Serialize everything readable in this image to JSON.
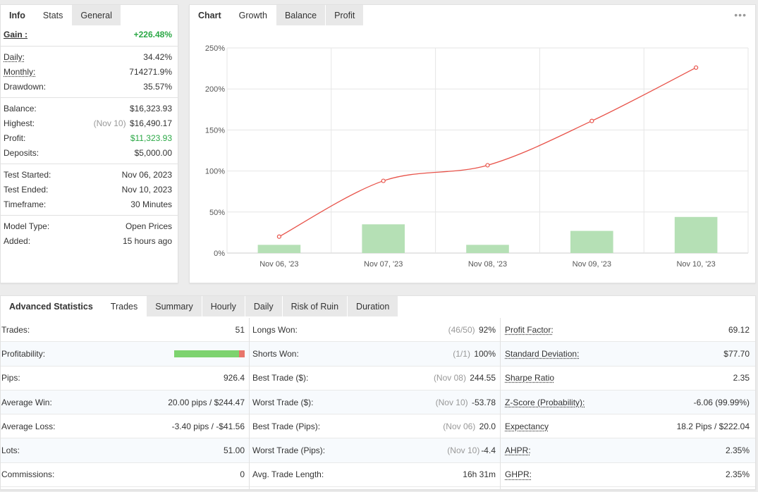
{
  "info_panel": {
    "tabs": [
      "Info",
      "Stats",
      "General"
    ],
    "gain": {
      "label": "Gain :",
      "value": "+226.48%"
    },
    "daily": {
      "label": "Daily:",
      "value": "34.42%"
    },
    "monthly": {
      "label": "Monthly:",
      "value": "714271.9%"
    },
    "drawdown": {
      "label": "Drawdown:",
      "value": "35.57%"
    },
    "balance": {
      "label": "Balance:",
      "value": "$16,323.93"
    },
    "highest": {
      "label": "Highest:",
      "note": "(Nov 10)",
      "value": "$16,490.17"
    },
    "profit": {
      "label": "Profit:",
      "value": "$11,323.93"
    },
    "deposits": {
      "label": "Deposits:",
      "value": "$5,000.00"
    },
    "test_started": {
      "label": "Test Started:",
      "value": "Nov 06, 2023"
    },
    "test_ended": {
      "label": "Test Ended:",
      "value": "Nov 10, 2023"
    },
    "timeframe": {
      "label": "Timeframe:",
      "value": "30 Minutes"
    },
    "model_type": {
      "label": "Model Type:",
      "value": "Open Prices"
    },
    "added": {
      "label": "Added:",
      "value": "15 hours ago"
    }
  },
  "chart_panel": {
    "tabs": [
      "Chart",
      "Growth",
      "Balance",
      "Profit"
    ],
    "menu_icon": "more-icon",
    "menu_glyph": "•••"
  },
  "chart_data": {
    "type": "line",
    "categories": [
      "Nov 06, '23",
      "Nov 07, '23",
      "Nov 08, '23",
      "Nov 09, '23",
      "Nov 10, '23"
    ],
    "y_ticks": [
      "0%",
      "50%",
      "100%",
      "150%",
      "200%",
      "250%"
    ],
    "ylim": [
      0,
      250
    ],
    "grid": true,
    "series": [
      {
        "type": "line",
        "values": [
          20,
          88,
          107,
          161,
          226
        ],
        "color": "#e8534a"
      },
      {
        "type": "bar",
        "values": [
          10,
          35,
          10,
          27,
          44
        ],
        "color": "#b5e0b5"
      }
    ]
  },
  "stats_panel": {
    "tabs": [
      "Advanced Statistics",
      "Trades",
      "Summary",
      "Hourly",
      "Daily",
      "Risk of Ruin",
      "Duration"
    ],
    "col1": [
      {
        "label": "Trades:",
        "value": "51"
      },
      {
        "label": "Profitability:",
        "win_fraction": 0.92
      },
      {
        "label": "Pips:",
        "value": "926.4"
      },
      {
        "label": "Average Win:",
        "value": "20.00 pips / $244.47"
      },
      {
        "label": "Average Loss:",
        "value": "-3.40 pips / -$41.56"
      },
      {
        "label": "Lots:",
        "value": "51.00"
      },
      {
        "label": "Commissions:",
        "value": "0"
      }
    ],
    "col2": [
      {
        "label": "Longs Won:",
        "note": "(46/50)",
        "value": "92%"
      },
      {
        "label": "Shorts Won:",
        "note": "(1/1)",
        "value": "100%"
      },
      {
        "label": "Best Trade ($):",
        "note": "(Nov 08)",
        "value": "244.55"
      },
      {
        "label": "Worst Trade ($):",
        "note": "(Nov 10)",
        "value": "-53.78"
      },
      {
        "label": "Best Trade (Pips):",
        "note": "(Nov 06)",
        "value": "20.0"
      },
      {
        "label": "Worst Trade (Pips):",
        "note": "(Nov 10)",
        "value": "-4.4"
      },
      {
        "label": "Avg. Trade Length:",
        "note": "",
        "value": "16h 31m"
      }
    ],
    "col3": [
      {
        "label": "Profit Factor:",
        "value": "69.12"
      },
      {
        "label": "Standard Deviation:",
        "value": "$77.70"
      },
      {
        "label": "Sharpe Ratio",
        "value": "2.35"
      },
      {
        "label": "Z-Score (Probability):",
        "value": "-6.06 (99.99%)"
      },
      {
        "label": "Expectancy",
        "value": "18.2 Pips / $222.04"
      },
      {
        "label": "AHPR:",
        "value": "2.35%"
      },
      {
        "label": "GHPR:",
        "value": "2.35%"
      }
    ]
  }
}
